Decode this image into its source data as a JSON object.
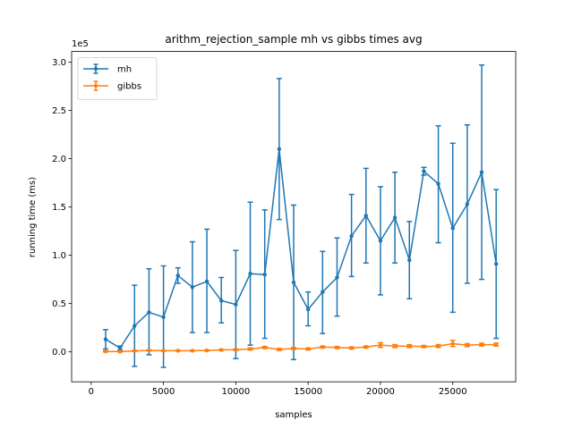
{
  "chart_data": {
    "type": "line",
    "title": "arithm_rejection_sample mh vs gibbs times avg",
    "xlabel": "samples",
    "ylabel": "running time (ms)",
    "y_offset_label": "1e5",
    "xlim": [
      -1350,
      29350
    ],
    "ylim": [
      -0.31,
      3.11
    ],
    "y_scale_factor": 100000,
    "x_ticks": [
      0,
      5000,
      10000,
      15000,
      20000,
      25000
    ],
    "x_tick_labels": [
      "0",
      "5000",
      "10000",
      "15000",
      "20000",
      "25000"
    ],
    "y_ticks": [
      0.0,
      0.5,
      1.0,
      1.5,
      2.0,
      2.5,
      3.0
    ],
    "y_tick_labels": [
      "0.0",
      "0.5",
      "1.0",
      "1.5",
      "2.0",
      "2.5",
      "3.0"
    ],
    "grid": false,
    "legend_position": "upper-left",
    "x": [
      1000,
      2000,
      3000,
      4000,
      5000,
      6000,
      7000,
      8000,
      9000,
      10000,
      11000,
      12000,
      13000,
      14000,
      15000,
      16000,
      17000,
      18000,
      19000,
      20000,
      21000,
      22000,
      23000,
      24000,
      25000,
      26000,
      27000,
      28000
    ],
    "series": [
      {
        "name": "mh",
        "color": "#1f77b4",
        "values": [
          0.13,
          0.04,
          0.27,
          0.41,
          0.36,
          0.79,
          0.67,
          0.73,
          0.53,
          0.49,
          0.81,
          0.8,
          2.1,
          0.72,
          0.44,
          0.62,
          0.77,
          1.2,
          1.41,
          1.15,
          1.39,
          0.95,
          1.87,
          1.74,
          1.28,
          1.53,
          1.86,
          0.91
        ],
        "err_low": [
          0.03,
          0.02,
          -0.15,
          -0.03,
          -0.16,
          0.71,
          0.2,
          0.2,
          0.3,
          -0.07,
          0.07,
          0.14,
          1.37,
          -0.08,
          0.27,
          0.19,
          0.37,
          0.78,
          0.92,
          0.59,
          0.92,
          0.55,
          1.83,
          1.13,
          0.41,
          0.71,
          0.75,
          0.14
        ],
        "err_high": [
          0.23,
          0.06,
          0.69,
          0.86,
          0.89,
          0.87,
          1.14,
          1.27,
          0.77,
          1.05,
          1.55,
          1.47,
          2.83,
          1.52,
          0.62,
          1.04,
          1.18,
          1.63,
          1.9,
          1.71,
          1.86,
          1.35,
          1.91,
          2.34,
          2.16,
          2.35,
          2.97,
          1.68
        ]
      },
      {
        "name": "gibbs",
        "color": "#ff7f0e",
        "values": [
          0.005,
          0.003,
          0.01,
          0.015,
          0.012,
          0.012,
          0.012,
          0.015,
          0.02,
          0.022,
          0.03,
          0.045,
          0.025,
          0.035,
          0.03,
          0.05,
          0.045,
          0.04,
          0.05,
          0.07,
          0.06,
          0.06,
          0.055,
          0.06,
          0.085,
          0.07,
          0.075,
          0.075
        ],
        "err_low": [
          0.0,
          -0.002,
          0.005,
          0.01,
          0.008,
          0.008,
          0.008,
          0.01,
          0.015,
          0.015,
          0.02,
          0.035,
          0.015,
          0.025,
          0.02,
          0.04,
          0.035,
          0.03,
          0.04,
          0.045,
          0.045,
          0.045,
          0.045,
          0.045,
          0.055,
          0.055,
          0.06,
          0.06
        ],
        "err_high": [
          0.01,
          0.008,
          0.015,
          0.02,
          0.016,
          0.016,
          0.016,
          0.02,
          0.025,
          0.03,
          0.04,
          0.055,
          0.035,
          0.045,
          0.04,
          0.06,
          0.055,
          0.05,
          0.06,
          0.095,
          0.075,
          0.075,
          0.065,
          0.075,
          0.12,
          0.085,
          0.09,
          0.09
        ]
      }
    ]
  }
}
